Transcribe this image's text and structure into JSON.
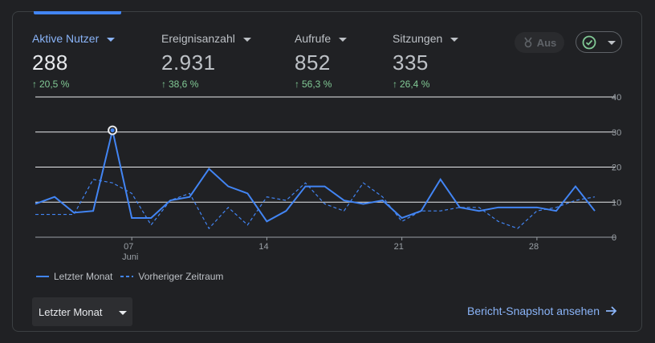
{
  "metrics": [
    {
      "label": "Aktive Nutzer",
      "value": "288",
      "delta": "20,5 %",
      "active": true
    },
    {
      "label": "Ereignisanzahl",
      "value": "2.931",
      "delta": "38,6 %",
      "active": false
    },
    {
      "label": "Aufrufe",
      "value": "852",
      "delta": "56,3 %",
      "active": false
    },
    {
      "label": "Sitzungen",
      "value": "335",
      "delta": "26,4 %",
      "active": false
    }
  ],
  "toggle_chip": {
    "label": "Aus"
  },
  "legend": {
    "current": "Letzter Monat",
    "previous": "Vorheriger Zeitraum"
  },
  "range_select": {
    "value": "Letzter Monat"
  },
  "snapshot_link": {
    "label": "Bericht-Snapshot ansehen"
  },
  "colors": {
    "accent": "#4285f4",
    "positive": "#81c995",
    "link": "#8ab4f8"
  },
  "chart_data": {
    "type": "line",
    "x_tick_labels": [
      "07",
      "14",
      "21",
      "28"
    ],
    "x_tick_sublabel": "Juni",
    "ylim": [
      0,
      40
    ],
    "y_ticks": [
      0,
      10,
      20,
      30,
      40
    ],
    "series": [
      {
        "name": "Letzter Monat",
        "style": "solid",
        "values": [
          9.5,
          11.5,
          7,
          7.5,
          30.5,
          5.5,
          5.5,
          10.5,
          11.5,
          19.5,
          14.5,
          12.5,
          4.5,
          7.5,
          14.5,
          14.5,
          10.5,
          9.5,
          10.5,
          5.5,
          7.5,
          16.5,
          8.5,
          7.5,
          8.5,
          8.5,
          8.5,
          7.5,
          14.5,
          7.5
        ]
      },
      {
        "name": "Vorheriger Zeitraum",
        "style": "dashed",
        "values": [
          6.5,
          6.5,
          6.5,
          16.5,
          15.5,
          12.5,
          3.5,
          10.5,
          12.5,
          2.5,
          8.5,
          3.5,
          11.5,
          10.5,
          15.5,
          9.5,
          7.5,
          15.5,
          11.5,
          4.5,
          7.5,
          7.5,
          8.5,
          8.5,
          4.5,
          2.5,
          7.5,
          8.5,
          10.5,
          11.5
        ]
      }
    ],
    "highlight_index": 4,
    "grid": true
  }
}
